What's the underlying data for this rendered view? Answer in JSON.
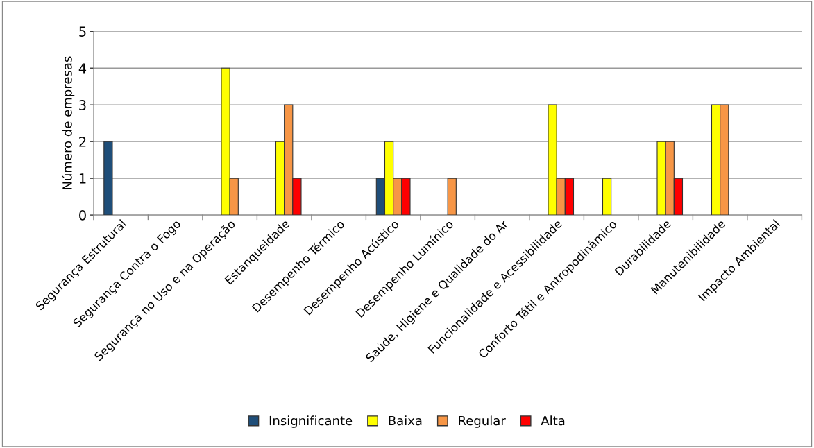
{
  "chart_data": {
    "type": "bar",
    "ylabel": "Número de empresas",
    "categories": [
      "Segurança Estrutural",
      "Segurança Contra o Fogo",
      "Segurança no Uso e na Operação",
      "Estanqueidade",
      "Desempenho Térmico",
      "Desempenho Acústico",
      "Desempenho Lumínico",
      "Saúde, Higiene e Qualidade do Ar",
      "Funcionalidade e Acessibilidade",
      "Conforto Tátil e Antropodinâmico",
      "Durabilidade",
      "Manutenibilidade",
      "Impacto Ambiental"
    ],
    "series": [
      {
        "name": "Insignificante",
        "color": "#1f4e79",
        "values": [
          2,
          null,
          null,
          null,
          null,
          1,
          null,
          null,
          null,
          null,
          null,
          null,
          null
        ]
      },
      {
        "name": "Baixa",
        "color": "#ffff00",
        "values": [
          null,
          null,
          4,
          2,
          null,
          2,
          null,
          null,
          3,
          1,
          2,
          3,
          null
        ]
      },
      {
        "name": "Regular",
        "color": "#f79646",
        "values": [
          null,
          null,
          1,
          3,
          null,
          1,
          1,
          null,
          1,
          null,
          2,
          3,
          null
        ]
      },
      {
        "name": "Alta",
        "color": "#ff0000",
        "values": [
          null,
          null,
          null,
          1,
          null,
          1,
          null,
          null,
          1,
          null,
          1,
          null,
          null
        ]
      }
    ],
    "ylim": [
      0,
      5
    ],
    "yticks": [
      0,
      1,
      2,
      3,
      4,
      5
    ],
    "grid": "y",
    "legend": "bottom"
  }
}
